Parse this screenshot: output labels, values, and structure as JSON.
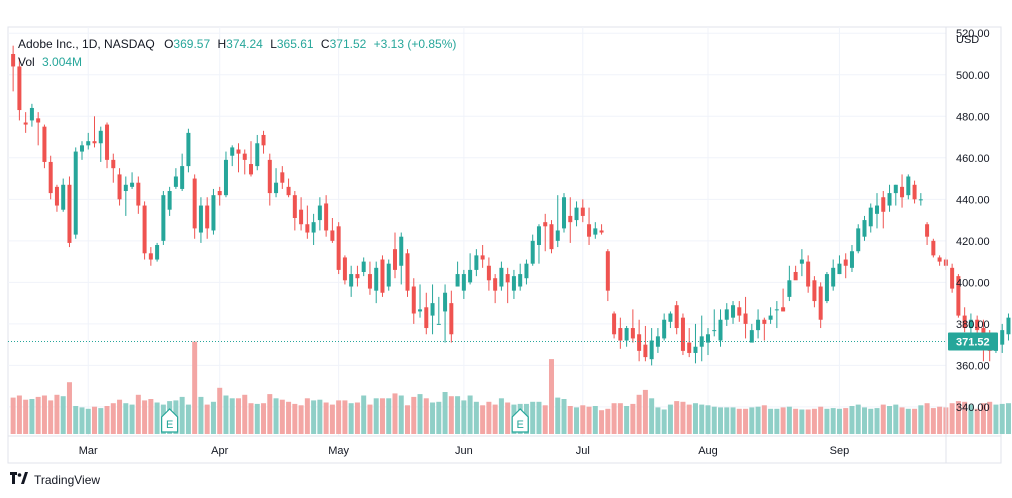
{
  "header": {
    "symbol": "Adobe Inc., 1D, NASDAQ",
    "o_label": "O",
    "o_value": "369.57",
    "h_label": "H",
    "h_value": "374.24",
    "l_label": "L",
    "l_value": "365.61",
    "c_label": "C",
    "c_value": "371.52",
    "change": "+3.13 (+0.85%)",
    "vol_label": "Vol",
    "vol_value": "3.004M"
  },
  "currency": "USD",
  "footer": {
    "brand": "TradingView"
  },
  "colors": {
    "up": "#26a69a",
    "down": "#ef5350",
    "vol_up": "#8fcfc7",
    "vol_down": "#f3a6a4",
    "grid": "#f0f3fa",
    "last_price_bg": "#26a69a"
  },
  "chart_data": {
    "type": "candlestick",
    "y_ticks": [
      "520.00",
      "500.00",
      "480.00",
      "460.00",
      "440.00",
      "420.00",
      "400.00",
      "380.00",
      "360.00",
      "340.00"
    ],
    "ylim": [
      326,
      523
    ],
    "x_ticks": [
      {
        "label": "Mar",
        "index": 12
      },
      {
        "label": "Apr",
        "index": 33
      },
      {
        "label": "May",
        "index": 52
      },
      {
        "label": "Jun",
        "index": 72
      },
      {
        "label": "Jul",
        "index": 91
      },
      {
        "label": "Aug",
        "index": 111
      },
      {
        "label": "Sep",
        "index": 132
      }
    ],
    "last_price": 371.52,
    "earnings_markers": [
      25,
      81
    ],
    "candles": [
      [
        510,
        504,
        514,
        492,
        5.2
      ],
      [
        504,
        483,
        508,
        478,
        5.5
      ],
      [
        477,
        476,
        482,
        472,
        4.9
      ],
      [
        478,
        484,
        486,
        475,
        5.0
      ],
      [
        479,
        477,
        482,
        466,
        5.3
      ],
      [
        475,
        458,
        476,
        455,
        5.5
      ],
      [
        458,
        443,
        461,
        440,
        4.8
      ],
      [
        446,
        437,
        447,
        434,
        5.6
      ],
      [
        435,
        447,
        450,
        434,
        5.4
      ],
      [
        447,
        419,
        451,
        417,
        7.4
      ],
      [
        423,
        463,
        465,
        421,
        4.0
      ],
      [
        463,
        466,
        468,
        459,
        3.8
      ],
      [
        466,
        468,
        472,
        464,
        3.6
      ],
      [
        468,
        467,
        480,
        465,
        3.9
      ],
      [
        467,
        473,
        475,
        458,
        3.7
      ],
      [
        476,
        459,
        477,
        455,
        4.0
      ],
      [
        459,
        455,
        462,
        448,
        4.4
      ],
      [
        452,
        440,
        455,
        437,
        4.9
      ],
      [
        444,
        447,
        451,
        432,
        4.4
      ],
      [
        446,
        448,
        453,
        445,
        4.2
      ],
      [
        448,
        437,
        451,
        433,
        5.6
      ],
      [
        437,
        414,
        439,
        411,
        4.8
      ],
      [
        414,
        411,
        417,
        408,
        5.0
      ],
      [
        411,
        418,
        419,
        410,
        4.5
      ],
      [
        420,
        442,
        444,
        418,
        4.2
      ],
      [
        435,
        444,
        446,
        432,
        4.7
      ],
      [
        446,
        451,
        455,
        445,
        4.8
      ],
      [
        445,
        456,
        462,
        444,
        5.3
      ],
      [
        456,
        472,
        474,
        453,
        4.2
      ],
      [
        450,
        426,
        452,
        421,
        13.2
      ],
      [
        424,
        437,
        441,
        419,
        5.3
      ],
      [
        437,
        426,
        441,
        421,
        4.2
      ],
      [
        425,
        442,
        445,
        423,
        4.6
      ],
      [
        444,
        442,
        446,
        437,
        6.6
      ],
      [
        442,
        459,
        463,
        441,
        5.5
      ],
      [
        461,
        465,
        466,
        456,
        5.1
      ],
      [
        464,
        462,
        467,
        453,
        5.1
      ],
      [
        462,
        459,
        464,
        452,
        5.6
      ],
      [
        457,
        452,
        468,
        451,
        4.4
      ],
      [
        456,
        467,
        471,
        454,
        4.3
      ],
      [
        471,
        466,
        473,
        462,
        4.4
      ],
      [
        459,
        443,
        462,
        437,
        5.7
      ],
      [
        443,
        448,
        455,
        441,
        5.1
      ],
      [
        453,
        448,
        456,
        445,
        4.9
      ],
      [
        446,
        442,
        450,
        441,
        4.6
      ],
      [
        442,
        431,
        444,
        425,
        4.3
      ],
      [
        435,
        428,
        441,
        425,
        4.1
      ],
      [
        428,
        424,
        437,
        421,
        5.1
      ],
      [
        424,
        429,
        433,
        418,
        4.8
      ],
      [
        430,
        437,
        441,
        425,
        4.9
      ],
      [
        438,
        425,
        442,
        422,
        4.5
      ],
      [
        425,
        420,
        431,
        419,
        4.2
      ],
      [
        427,
        406,
        429,
        404,
        4.8
      ],
      [
        412,
        401,
        413,
        399,
        4.8
      ],
      [
        398,
        404,
        408,
        393,
        4.4
      ],
      [
        404,
        402,
        408,
        398,
        4.5
      ],
      [
        405,
        410,
        412,
        403,
        5.5
      ],
      [
        404,
        397,
        410,
        394,
        4.2
      ],
      [
        396,
        407,
        410,
        390,
        5.1
      ],
      [
        411,
        395,
        413,
        393,
        5.1
      ],
      [
        398,
        409,
        411,
        396,
        5.1
      ],
      [
        416,
        406,
        424,
        402,
        5.8
      ],
      [
        408,
        422,
        424,
        399,
        5.5
      ],
      [
        414,
        396,
        416,
        393,
        4.1
      ],
      [
        398,
        385,
        402,
        380,
        5.3
      ],
      [
        386,
        387,
        399,
        383,
        5.7
      ],
      [
        388,
        378,
        395,
        375,
        5.1
      ],
      [
        384,
        390,
        399,
        375,
        4.5
      ],
      [
        380,
        380,
        393,
        380,
        4.6
      ],
      [
        386,
        395,
        399,
        371,
        6.0
      ],
      [
        390,
        375,
        396,
        371,
        5.4
      ],
      [
        398,
        404,
        410,
        398,
        5.4
      ],
      [
        396,
        404,
        406,
        392,
        4.8
      ],
      [
        400,
        406,
        414,
        399,
        5.5
      ],
      [
        406,
        413,
        416,
        403,
        4.6
      ],
      [
        413,
        411,
        418,
        407,
        4.1
      ],
      [
        408,
        401,
        412,
        396,
        4.6
      ],
      [
        402,
        396,
        404,
        390,
        4.2
      ],
      [
        398,
        407,
        410,
        396,
        5.1
      ],
      [
        404,
        400,
        407,
        390,
        4.5
      ],
      [
        396,
        403,
        406,
        392,
        4.2
      ],
      [
        398,
        404,
        409,
        396,
        4.3
      ],
      [
        402,
        409,
        411,
        399,
        4.3
      ],
      [
        409,
        420,
        423,
        408,
        4.6
      ],
      [
        418,
        427,
        428,
        409,
        4.6
      ],
      [
        429,
        427,
        433,
        415,
        4.1
      ],
      [
        428,
        416,
        430,
        414,
        10.7
      ],
      [
        420,
        425,
        442,
        417,
        5.2
      ],
      [
        426,
        441,
        443,
        424,
        5.0
      ],
      [
        432,
        429,
        441,
        419,
        4.0
      ],
      [
        430,
        436,
        439,
        427,
        3.8
      ],
      [
        436,
        432,
        440,
        429,
        4.1
      ],
      [
        428,
        422,
        436,
        418,
        3.9
      ],
      [
        423,
        426,
        429,
        421,
        4.0
      ],
      [
        425,
        424,
        428,
        423,
        3.4
      ],
      [
        415,
        396,
        416,
        391,
        3.6
      ],
      [
        385,
        375,
        386,
        373,
        4.4
      ],
      [
        378,
        372,
        383,
        368,
        4.4
      ],
      [
        372,
        378,
        379,
        369,
        4.0
      ],
      [
        378,
        373,
        387,
        371,
        4.3
      ],
      [
        375,
        367,
        382,
        362,
        5.6
      ],
      [
        370,
        364,
        379,
        362,
        6.3
      ],
      [
        363,
        372,
        378,
        360,
        5.1
      ],
      [
        369,
        374,
        378,
        366,
        3.8
      ],
      [
        373,
        382,
        385,
        372,
        3.5
      ],
      [
        381,
        385,
        386,
        378,
        4.2
      ],
      [
        389,
        378,
        391,
        375,
        4.7
      ],
      [
        383,
        367,
        385,
        365,
        4.6
      ],
      [
        371,
        366,
        378,
        364,
        4.2
      ],
      [
        366,
        369,
        380,
        361,
        4.4
      ],
      [
        369,
        374,
        384,
        362,
        4.2
      ],
      [
        371,
        375,
        378,
        365,
        4.1
      ],
      [
        377,
        377,
        387,
        374,
        3.9
      ],
      [
        372,
        382,
        387,
        369,
        3.8
      ],
      [
        382,
        387,
        390,
        379,
        3.8
      ],
      [
        383,
        389,
        391,
        380,
        3.8
      ],
      [
        388,
        384,
        391,
        381,
        3.6
      ],
      [
        385,
        380,
        393,
        373,
        3.6
      ],
      [
        371,
        377,
        380,
        372,
        3.8
      ],
      [
        377,
        382,
        387,
        373,
        3.9
      ],
      [
        382,
        380,
        383,
        372,
        4.1
      ],
      [
        382,
        384,
        388,
        380,
        3.6
      ],
      [
        387,
        387,
        391,
        378,
        3.6
      ],
      [
        388,
        386,
        397,
        386,
        3.8
      ],
      [
        393,
        401,
        408,
        391,
        3.9
      ],
      [
        405,
        401,
        408,
        402,
        3.6
      ],
      [
        409,
        411,
        416,
        403,
        3.5
      ],
      [
        410,
        398,
        413,
        395,
        3.5
      ],
      [
        401,
        391,
        403,
        388,
        3.6
      ],
      [
        398,
        382,
        400,
        378,
        3.9
      ],
      [
        391,
        404,
        405,
        390,
        3.6
      ],
      [
        398,
        407,
        411,
        396,
        3.7
      ],
      [
        404,
        409,
        413,
        404,
        3.6
      ],
      [
        411,
        408,
        414,
        402,
        3.7
      ],
      [
        407,
        415,
        418,
        405,
        4.0
      ],
      [
        415,
        426,
        428,
        414,
        4.2
      ],
      [
        422,
        430,
        432,
        420,
        3.8
      ],
      [
        427,
        436,
        438,
        424,
        3.6
      ],
      [
        433,
        437,
        443,
        426,
        3.7
      ],
      [
        441,
        434,
        444,
        426,
        4.2
      ],
      [
        437,
        443,
        447,
        434,
        4.0
      ],
      [
        443,
        447,
        447,
        437,
        4.2
      ],
      [
        446,
        441,
        452,
        436,
        3.8
      ],
      [
        442,
        451,
        452,
        440,
        3.6
      ],
      [
        447,
        440,
        449,
        438,
        3.6
      ],
      [
        440,
        440,
        443,
        437,
        4.1
      ],
      [
        428,
        422,
        429,
        418,
        4.4
      ],
      [
        420,
        413,
        421,
        412,
        3.7
      ],
      [
        412,
        410,
        413,
        408,
        3.9
      ],
      [
        411,
        408,
        412,
        406,
        3.8
      ],
      [
        407,
        397,
        409,
        395,
        4.4
      ],
      [
        403,
        384,
        404,
        383,
        4.7
      ],
      [
        384,
        378,
        388,
        376,
        4.6
      ],
      [
        378,
        382,
        385,
        373,
        4.2
      ],
      [
        382,
        377,
        384,
        374,
        3.6
      ],
      [
        378,
        368,
        382,
        362,
        4.4
      ],
      [
        373,
        367,
        377,
        362,
        4.6
      ],
      [
        367,
        370,
        374,
        366,
        4.2
      ],
      [
        370,
        377,
        380,
        366,
        4.3
      ],
      [
        375,
        383,
        385,
        372,
        4.4
      ],
      [
        385,
        389,
        390,
        380,
        4.7
      ],
      [
        392,
        394,
        395,
        392,
        4.6
      ],
      [
        395,
        396,
        398,
        393,
        4.6
      ],
      [
        387,
        368,
        388,
        366,
        6.0
      ],
      [
        369.57,
        371.52,
        374.24,
        365.61,
        3.004
      ]
    ]
  }
}
